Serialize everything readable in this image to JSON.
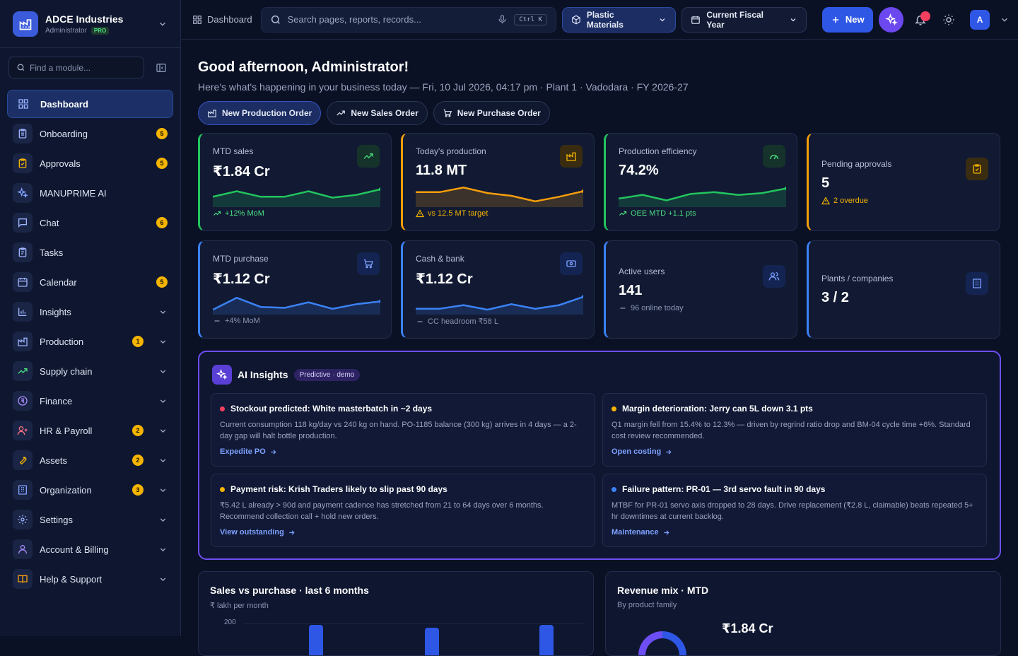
{
  "company": {
    "name": "ADCE Industries",
    "role": "Administrator",
    "plan": "PRO"
  },
  "sidebar": {
    "find_placeholder": "Find a module...",
    "items": [
      {
        "label": "Dashboard",
        "icon": "dashboard-icon",
        "active": true
      },
      {
        "label": "Onboarding",
        "icon": "clipboard-icon",
        "badge": "5"
      },
      {
        "label": "Approvals",
        "icon": "clipboard-check-icon",
        "badge": "5"
      },
      {
        "label": "MANUPRIME AI",
        "icon": "sparkles-icon"
      },
      {
        "label": "Chat",
        "icon": "chat-icon",
        "badge": "6"
      },
      {
        "label": "Tasks",
        "icon": "tasks-icon"
      },
      {
        "label": "Calendar",
        "icon": "calendar-icon",
        "badge": "5"
      },
      {
        "label": "Insights",
        "icon": "bar-chart-icon",
        "chevron": true
      },
      {
        "label": "Production",
        "icon": "factory-icon",
        "badge": "1",
        "chevron": true
      },
      {
        "label": "Supply chain",
        "icon": "trend-icon",
        "chevron": true
      },
      {
        "label": "Finance",
        "icon": "coin-icon",
        "chevron": true
      },
      {
        "label": "HR & Payroll",
        "icon": "user-plus-icon",
        "badge": "2",
        "chevron": true
      },
      {
        "label": "Assets",
        "icon": "wrench-icon",
        "badge": "2",
        "chevron": true
      },
      {
        "label": "Organization",
        "icon": "building-icon",
        "badge": "3",
        "chevron": true
      },
      {
        "label": "Settings",
        "icon": "gear-icon",
        "chevron": true
      },
      {
        "label": "Account & Billing",
        "icon": "user-icon",
        "chevron": true
      },
      {
        "label": "Help & Support",
        "icon": "book-icon",
        "chevron": true
      }
    ]
  },
  "topbar": {
    "breadcrumb": "Dashboard",
    "search_placeholder": "Search pages, reports, records...",
    "shortcut": "Ctrl K",
    "segment": "Plastic Materials",
    "period": "Current Fiscal Year",
    "new_label": "New",
    "avatar": "A"
  },
  "greeting": {
    "title": "Good afternoon, Administrator!",
    "subtitle": "Here's what's happening in your business today — Fri, 10 Jul 2026, 04:17 pm · Plant 1 · Vadodara · FY 2026-27"
  },
  "quick_actions": [
    "New Production Order",
    "New Sales Order",
    "New Purchase Order"
  ],
  "kpis": [
    {
      "label": "MTD sales",
      "value": "₹1.84 Cr",
      "foot": "+12% MoM",
      "accent": "#22c55e",
      "trend": [
        0.55,
        0.25,
        0.55,
        0.55,
        0.25,
        0.6,
        0.45,
        0.15
      ]
    },
    {
      "label": "Today's production",
      "value": "11.8 MT",
      "foot": "vs 12.5 MT target",
      "accent": "#f59e0b",
      "trend": [
        0.3,
        0.3,
        0.05,
        0.35,
        0.5,
        0.8,
        0.55,
        0.25
      ]
    },
    {
      "label": "Production efficiency",
      "value": "74.2%",
      "foot": "OEE MTD +1.1 pts",
      "accent": "#22c55e",
      "trend": [
        0.65,
        0.45,
        0.75,
        0.4,
        0.3,
        0.45,
        0.35,
        0.1
      ]
    },
    {
      "label": "Pending approvals",
      "value": "5",
      "foot": "2 overdue",
      "accent": "#f59e0b"
    },
    {
      "label": "MTD purchase",
      "value": "₹1.12 Cr",
      "foot": "+4% MoM",
      "accent": "#3b82f6",
      "trend": [
        0.85,
        0.2,
        0.7,
        0.75,
        0.45,
        0.8,
        0.55,
        0.4
      ]
    },
    {
      "label": "Cash & bank",
      "value": "₹1.12 Cr",
      "foot": "CC headroom ₹58 L",
      "accent": "#3b82f6",
      "trend": [
        0.8,
        0.8,
        0.6,
        0.85,
        0.55,
        0.8,
        0.6,
        0.15
      ]
    },
    {
      "label": "Active users",
      "value": "141",
      "foot": "96 online today",
      "accent": "#3b82f6"
    },
    {
      "label": "Plants / companies",
      "value": "3 / 2",
      "accent": "#3b82f6"
    }
  ],
  "ai": {
    "title": "AI Insights",
    "tag": "Predictive · demo",
    "cards": [
      {
        "title": "Stockout predicted: White masterbatch in ~2 days",
        "color": "#f43f5e",
        "body": "Current consumption 118 kg/day vs 240 kg on hand. PO-1185 balance (300 kg) arrives in 4 days — a 2-day gap will halt bottle production.",
        "link": "Expedite PO"
      },
      {
        "title": "Margin deterioration: Jerry can 5L down 3.1 pts",
        "color": "#f5b400",
        "body": "Q1 margin fell from 15.4% to 12.3% — driven by regrind ratio drop and BM-04 cycle time +6%. Standard cost review recommended.",
        "link": "Open costing"
      },
      {
        "title": "Payment risk: Krish Traders likely to slip past 90 days",
        "color": "#f5b400",
        "body": "₹5.42 L already > 90d and payment cadence has stretched from 21 to 64 days over 6 months. Recommend collection call + hold new orders.",
        "link": "View outstanding"
      },
      {
        "title": "Failure pattern: PR-01 — 3rd servo fault in 90 days",
        "color": "#3b82f6",
        "body": "MTBF for PR-01 servo axis dropped to 28 days. Drive replacement (₹2.8 L, claimable) beats repeated 5+ hr downtimes at current backlog.",
        "link": "Maintenance"
      }
    ]
  },
  "panels": {
    "sales": {
      "title": "Sales vs purchase · last 6 months",
      "subtitle": "₹ lakh per month",
      "ytick": "200"
    },
    "mix": {
      "title": "Revenue mix · MTD",
      "subtitle": "By product family",
      "value": "₹1.84 Cr"
    }
  },
  "chart_data": {
    "type": "bar",
    "title": "Sales vs purchase · last 6 months",
    "ylabel": "₹ lakh per month",
    "yticks": [
      200
    ],
    "visible_bar_tops": [
      195,
      188,
      195
    ]
  }
}
